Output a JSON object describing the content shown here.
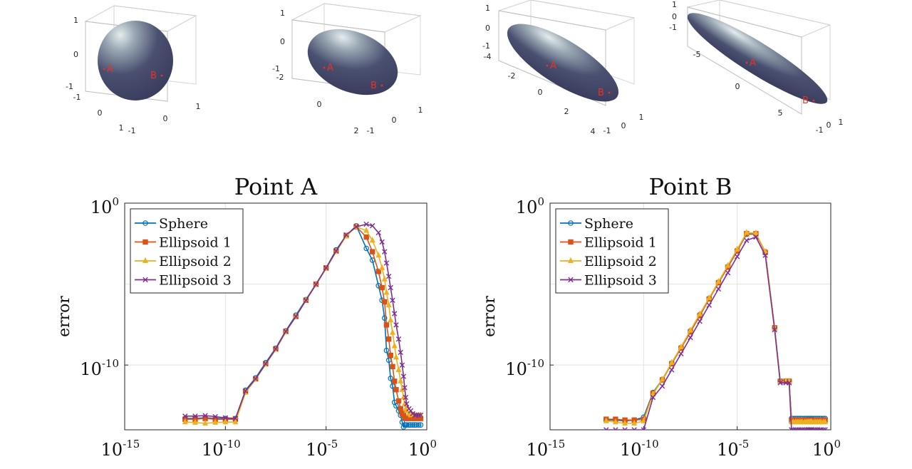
{
  "ellipsoids": [
    {
      "name": "Sphere",
      "z_ticks": [
        "1",
        "0",
        "-1"
      ],
      "x_ticks": [
        "-1",
        "0",
        "1"
      ],
      "y_ticks": [
        "-1",
        "0",
        "1"
      ],
      "point_a": "A",
      "point_b": "B"
    },
    {
      "name": "Ellipsoid 1",
      "z_ticks": [
        "1",
        "0",
        "-1"
      ],
      "x_ticks": [
        "-2",
        "0",
        "2"
      ],
      "y_ticks": [
        "-1",
        "0",
        "1"
      ],
      "point_a": "A",
      "point_b": "B"
    },
    {
      "name": "Ellipsoid 2",
      "z_ticks": [
        "1",
        "0",
        "-1"
      ],
      "x_ticks": [
        "-4",
        "-2",
        "0",
        "2",
        "4"
      ],
      "y_ticks": [
        "-1",
        "0",
        "1"
      ],
      "point_a": "A",
      "point_b": "B"
    },
    {
      "name": "Ellipsoid 3",
      "z_ticks": [
        "1",
        "0",
        "-1"
      ],
      "x_ticks": [
        "-5",
        "0",
        "5"
      ],
      "y_ticks": [
        "-1",
        "0",
        "1"
      ],
      "point_a": "A",
      "point_b": "B"
    }
  ],
  "chart_data": [
    {
      "type": "line",
      "title": "Point A",
      "ylabel": "error",
      "xlabel": "",
      "xscale": "log",
      "yscale": "log",
      "xlim": [
        1e-15,
        1
      ],
      "ylim": [
        1e-14,
        1
      ],
      "x_ticks": [
        {
          "base": "10",
          "exp": "-15"
        },
        {
          "base": "10",
          "exp": "-10"
        },
        {
          "base": "10",
          "exp": "-5"
        },
        {
          "base": "10",
          "exp": "0"
        }
      ],
      "y_ticks": [
        {
          "base": "10",
          "exp": "0"
        },
        {
          "base": "10",
          "exp": "-10"
        }
      ],
      "grid": true,
      "legend_position": "top-left",
      "series": [
        {
          "name": "Sphere",
          "color": "#0072BD",
          "marker": "circle",
          "x": [
            1e-12,
            3.16e-12,
            1e-11,
            3.16e-11,
            1e-10,
            3.16e-10,
            1e-09,
            3.16e-09,
            1e-08,
            3.16e-08,
            1e-07,
            3.16e-07,
            1e-06,
            3.16e-06,
            1e-05,
            3.16e-05,
            0.0001,
            0.000316,
            0.001,
            0.002,
            0.004,
            0.006,
            0.008,
            0.01,
            0.013,
            0.016,
            0.02,
            0.025,
            0.03,
            0.04,
            0.05,
            0.06,
            0.07,
            0.08,
            0.09,
            0.1,
            0.13,
            0.16,
            0.2,
            0.25,
            0.3,
            0.4,
            0.5
          ],
          "y": [
            5e-14,
            5e-14,
            5.6e-14,
            5e-14,
            5e-14,
            5e-14,
            2.8e-12,
            1.6e-11,
            1.4e-10,
            1.1e-09,
            1.3e-08,
            1.2e-07,
            1.1e-06,
            1e-05,
            0.0001,
            0.0013,
            0.01,
            0.04,
            0.0016,
            0.0003,
            8e-06,
            1e-06,
            8e-08,
            8e-10,
            2e-10,
            1.5e-11,
            5e-12,
            5e-13,
            3e-13,
            1.5e-13,
            8e-14,
            3e-14,
            1.5e-14,
            2e-14,
            2e-14,
            2e-14,
            2e-14,
            2e-14,
            2e-14,
            2e-14,
            2e-14,
            2e-14,
            2e-14
          ]
        },
        {
          "name": "Ellipsoid 1",
          "color": "#D95319",
          "marker": "square",
          "x": [
            1e-12,
            3.16e-12,
            1e-11,
            3.16e-11,
            1e-10,
            3.16e-10,
            1e-09,
            3.16e-09,
            1e-08,
            3.16e-08,
            1e-07,
            3.16e-07,
            1e-06,
            3.16e-06,
            1e-05,
            3.16e-05,
            0.0001,
            0.000316,
            0.001,
            0.002,
            0.004,
            0.006,
            0.008,
            0.01,
            0.013,
            0.016,
            0.02,
            0.025,
            0.03,
            0.04,
            0.05,
            0.06,
            0.07,
            0.08,
            0.09,
            0.1,
            0.13,
            0.16,
            0.2,
            0.25,
            0.3,
            0.4,
            0.5
          ],
          "y": [
            4.5e-14,
            4.5e-14,
            5e-14,
            4.5e-14,
            4.5e-14,
            4.5e-14,
            2.4e-12,
            1.4e-11,
            1.2e-10,
            1e-09,
            1.2e-08,
            1e-07,
            1e-06,
            1e-05,
            0.0001,
            0.0011,
            0.01,
            0.035,
            0.008,
            0.001,
            6e-05,
            6e-06,
            8e-07,
            3e-08,
            4e-09,
            4e-10,
            8e-11,
            1e-11,
            3e-12,
            6e-13,
            2e-13,
            1e-13,
            8e-14,
            6e-14,
            5e-14,
            5e-14,
            5e-14,
            5e-14,
            5e-14,
            5e-14,
            5e-14,
            5e-14,
            5e-14
          ]
        },
        {
          "name": "Ellipsoid 2",
          "color": "#EDB120",
          "marker": "triangle",
          "x": [
            1e-12,
            3.16e-12,
            1e-11,
            3.16e-11,
            1e-10,
            3.16e-10,
            1e-09,
            3.16e-09,
            1e-08,
            3.16e-08,
            1e-07,
            3.16e-07,
            1e-06,
            3.16e-06,
            1e-05,
            3.16e-05,
            0.0001,
            0.000316,
            0.001,
            0.002,
            0.004,
            0.006,
            0.008,
            0.01,
            0.013,
            0.016,
            0.02,
            0.025,
            0.03,
            0.04,
            0.05,
            0.06,
            0.07,
            0.08,
            0.09,
            0.1,
            0.13,
            0.16,
            0.2,
            0.25,
            0.3,
            0.4,
            0.5
          ],
          "y": [
            3e-14,
            2.8e-14,
            2.5e-14,
            2.8e-14,
            3e-14,
            3e-14,
            2e-12,
            1.3e-11,
            1.1e-10,
            9e-10,
            1.1e-08,
            1e-07,
            1e-06,
            9e-06,
            9e-05,
            0.001,
            0.009,
            0.035,
            0.02,
            0.005,
            0.0006,
            0.0001,
            2e-05,
            3e-06,
            5e-07,
            6e-08,
            1e-08,
            1.5e-09,
            3e-10,
            5e-11,
            1e-11,
            3e-12,
            1e-12,
            4e-13,
            2e-13,
            1.5e-13,
            1e-13,
            8e-14,
            8e-14,
            8e-14,
            8e-14,
            8e-14,
            8e-14
          ]
        },
        {
          "name": "Ellipsoid 3",
          "color": "#7E2F8E",
          "marker": "x",
          "x": [
            1e-12,
            3.16e-12,
            1e-11,
            3.16e-11,
            1e-10,
            3.16e-10,
            1e-09,
            3.16e-09,
            1e-08,
            3.16e-08,
            1e-07,
            3.16e-07,
            1e-06,
            3.16e-06,
            1e-05,
            3.16e-05,
            0.0001,
            0.000316,
            0.001,
            0.002,
            0.004,
            0.006,
            0.008,
            0.01,
            0.013,
            0.016,
            0.02,
            0.025,
            0.03,
            0.04,
            0.05,
            0.06,
            0.07,
            0.08,
            0.09,
            0.1,
            0.13,
            0.16,
            0.2,
            0.25,
            0.3,
            0.4,
            0.5
          ],
          "y": [
            7e-14,
            7e-14,
            7.5e-14,
            6.5e-14,
            5.5e-14,
            5e-14,
            2.5e-12,
            1.4e-11,
            1.2e-10,
            1e-09,
            1.2e-08,
            1e-07,
            1e-06,
            9.5e-06,
            0.0001,
            0.0011,
            0.011,
            0.035,
            0.05,
            0.04,
            0.015,
            0.004,
            0.001,
            0.0002,
            3e-05,
            6e-06,
            1e-06,
            1.5e-07,
            3e-08,
            4e-09,
            6e-10,
            1e-10,
            2e-11,
            4e-12,
            1e-12,
            4e-13,
            2e-13,
            1.5e-13,
            1e-13,
            8e-14,
            8e-14,
            8e-14,
            8e-14
          ]
        }
      ]
    },
    {
      "type": "line",
      "title": "Point B",
      "ylabel": "error",
      "xlabel": "",
      "xscale": "log",
      "yscale": "log",
      "xlim": [
        1e-15,
        1
      ],
      "ylim": [
        1e-14,
        1
      ],
      "x_ticks": [
        {
          "base": "10",
          "exp": "-15"
        },
        {
          "base": "10",
          "exp": "-10"
        },
        {
          "base": "10",
          "exp": "-5"
        },
        {
          "base": "10",
          "exp": "0"
        }
      ],
      "y_ticks": [
        {
          "base": "10",
          "exp": "0"
        },
        {
          "base": "10",
          "exp": "-10"
        }
      ],
      "grid": true,
      "legend_position": "top-left",
      "series": [
        {
          "name": "Sphere",
          "color": "#0072BD",
          "marker": "circle",
          "x": [
            1e-12,
            3.16e-12,
            1e-11,
            3.16e-11,
            1e-10,
            3.16e-10,
            1e-09,
            3.16e-09,
            1e-08,
            3.16e-08,
            1e-07,
            3.16e-07,
            1e-06,
            3.16e-06,
            1e-05,
            3.16e-05,
            0.0001,
            0.000316,
            0.001,
            0.002,
            0.004,
            0.006,
            0.008,
            0.01,
            0.013,
            0.016,
            0.02,
            0.025,
            0.03,
            0.04,
            0.05,
            0.06,
            0.07,
            0.08,
            0.09,
            0.1,
            0.13,
            0.16,
            0.2,
            0.25,
            0.3,
            0.4,
            0.5
          ],
          "y": [
            4e-14,
            4e-14,
            3.5e-14,
            4e-14,
            6e-14,
            2e-12,
            1.3e-11,
            1.3e-10,
            1.2e-09,
            1.3e-08,
            1.3e-07,
            1.3e-06,
            1.3e-05,
            0.00012,
            0.0012,
            0.012,
            0.012,
            0.001,
            2e-08,
            1e-11,
            1e-11,
            1e-11,
            5e-14,
            5e-14,
            5e-14,
            5e-14,
            5e-14,
            5e-14,
            5e-14,
            5e-14,
            5e-14,
            5e-14,
            5e-14,
            5e-14,
            5e-14,
            5e-14,
            5e-14,
            5e-14,
            5e-14,
            5e-14,
            5e-14,
            5e-14,
            5e-14
          ]
        },
        {
          "name": "Ellipsoid 1",
          "color": "#D95319",
          "marker": "square",
          "x": [
            1e-12,
            3.16e-12,
            1e-11,
            3.16e-11,
            1e-10,
            3.16e-10,
            1e-09,
            3.16e-09,
            1e-08,
            3.16e-08,
            1e-07,
            3.16e-07,
            1e-06,
            3.16e-06,
            1e-05,
            3.16e-05,
            0.0001,
            0.000316,
            0.001,
            0.002,
            0.004,
            0.006,
            0.008,
            0.01,
            0.013,
            0.016,
            0.02,
            0.025,
            0.03,
            0.04,
            0.05,
            0.06,
            0.07,
            0.08,
            0.09,
            0.1,
            0.13,
            0.16,
            0.2,
            0.25,
            0.3,
            0.4,
            0.5
          ],
          "y": [
            4.5e-14,
            4.5e-14,
            4e-14,
            4e-14,
            4.5e-14,
            1.8e-12,
            1.2e-11,
            1.2e-10,
            1.1e-09,
            1.1e-08,
            1.1e-07,
            1.2e-06,
            1.2e-05,
            0.00011,
            0.0011,
            0.013,
            0.013,
            0.0009,
            2e-08,
            1e-11,
            1e-11,
            1e-11,
            4e-14,
            4e-14,
            4e-14,
            4e-14,
            4e-14,
            4e-14,
            4e-14,
            4e-14,
            4e-14,
            4e-14,
            4e-14,
            4e-14,
            4e-14,
            4e-14,
            4e-14,
            4e-14,
            4e-14,
            4e-14,
            4e-14,
            4e-14,
            4e-14
          ]
        },
        {
          "name": "Ellipsoid 2",
          "color": "#EDB120",
          "marker": "triangle",
          "x": [
            1e-12,
            3.16e-12,
            1e-11,
            3.16e-11,
            1e-10,
            3.16e-10,
            1e-09,
            3.16e-09,
            1e-08,
            3.16e-08,
            1e-07,
            3.16e-07,
            1e-06,
            3.16e-06,
            1e-05,
            3.16e-05,
            0.0001,
            0.000316,
            0.001,
            0.002,
            0.004,
            0.006,
            0.008,
            0.01,
            0.013,
            0.016,
            0.02,
            0.025,
            0.03,
            0.04,
            0.05,
            0.06,
            0.07,
            0.08,
            0.09,
            0.1,
            0.13,
            0.16,
            0.2,
            0.25,
            0.3,
            0.4,
            0.5
          ],
          "y": [
            3.5e-14,
            3e-14,
            2.5e-14,
            2.5e-14,
            3.5e-14,
            1.6e-12,
            1.3e-11,
            1.4e-10,
            1.3e-09,
            1.4e-08,
            1.4e-07,
            1.4e-06,
            1.4e-05,
            0.00014,
            0.0014,
            0.015,
            0.014,
            0.001,
            2e-08,
            1e-11,
            1e-11,
            1e-11,
            3e-14,
            3e-14,
            3e-14,
            3e-14,
            3e-14,
            3e-14,
            3e-14,
            3e-14,
            3e-14,
            3e-14,
            3e-14,
            3e-14,
            3e-14,
            3e-14,
            3e-14,
            3e-14,
            3e-14,
            3e-14,
            3e-14,
            3e-14,
            3e-14
          ]
        },
        {
          "name": "Ellipsoid 3",
          "color": "#7E2F8E",
          "marker": "x",
          "x": [
            1e-12,
            3.16e-12,
            1e-11,
            3.16e-11,
            1e-10,
            3.16e-10,
            1e-09,
            3.16e-09,
            1e-08,
            3.16e-08,
            1e-07,
            3.16e-07,
            1e-06,
            3.16e-06,
            1e-05,
            3.16e-05,
            0.0001,
            0.000316,
            0.001,
            0.002,
            0.004,
            0.006,
            0.008,
            0.01,
            0.013,
            0.016,
            0.02,
            0.025,
            0.03,
            0.04,
            0.05,
            0.06,
            0.07,
            0.08,
            0.09,
            0.1,
            0.13,
            0.16,
            0.2,
            0.25,
            0.3,
            0.4,
            0.5
          ],
          "y": [
            1e-14,
            1e-14,
            1e-14,
            1e-14,
            1e-14,
            1e-12,
            5e-12,
            5e-11,
            5e-10,
            5e-09,
            5e-08,
            5e-07,
            5e-06,
            5e-05,
            0.0005,
            0.005,
            0.008,
            0.0006,
            1.5e-08,
            8e-12,
            8e-12,
            8e-12,
            1e-14,
            1e-14,
            1e-14,
            1e-14,
            1e-14,
            1e-14,
            1e-14,
            1e-14,
            1e-14,
            1e-14,
            1e-14,
            1e-14,
            1e-14,
            1e-14,
            1e-14,
            1e-14,
            1e-14,
            1e-14,
            1e-14,
            1e-14,
            1e-14
          ]
        }
      ]
    }
  ]
}
